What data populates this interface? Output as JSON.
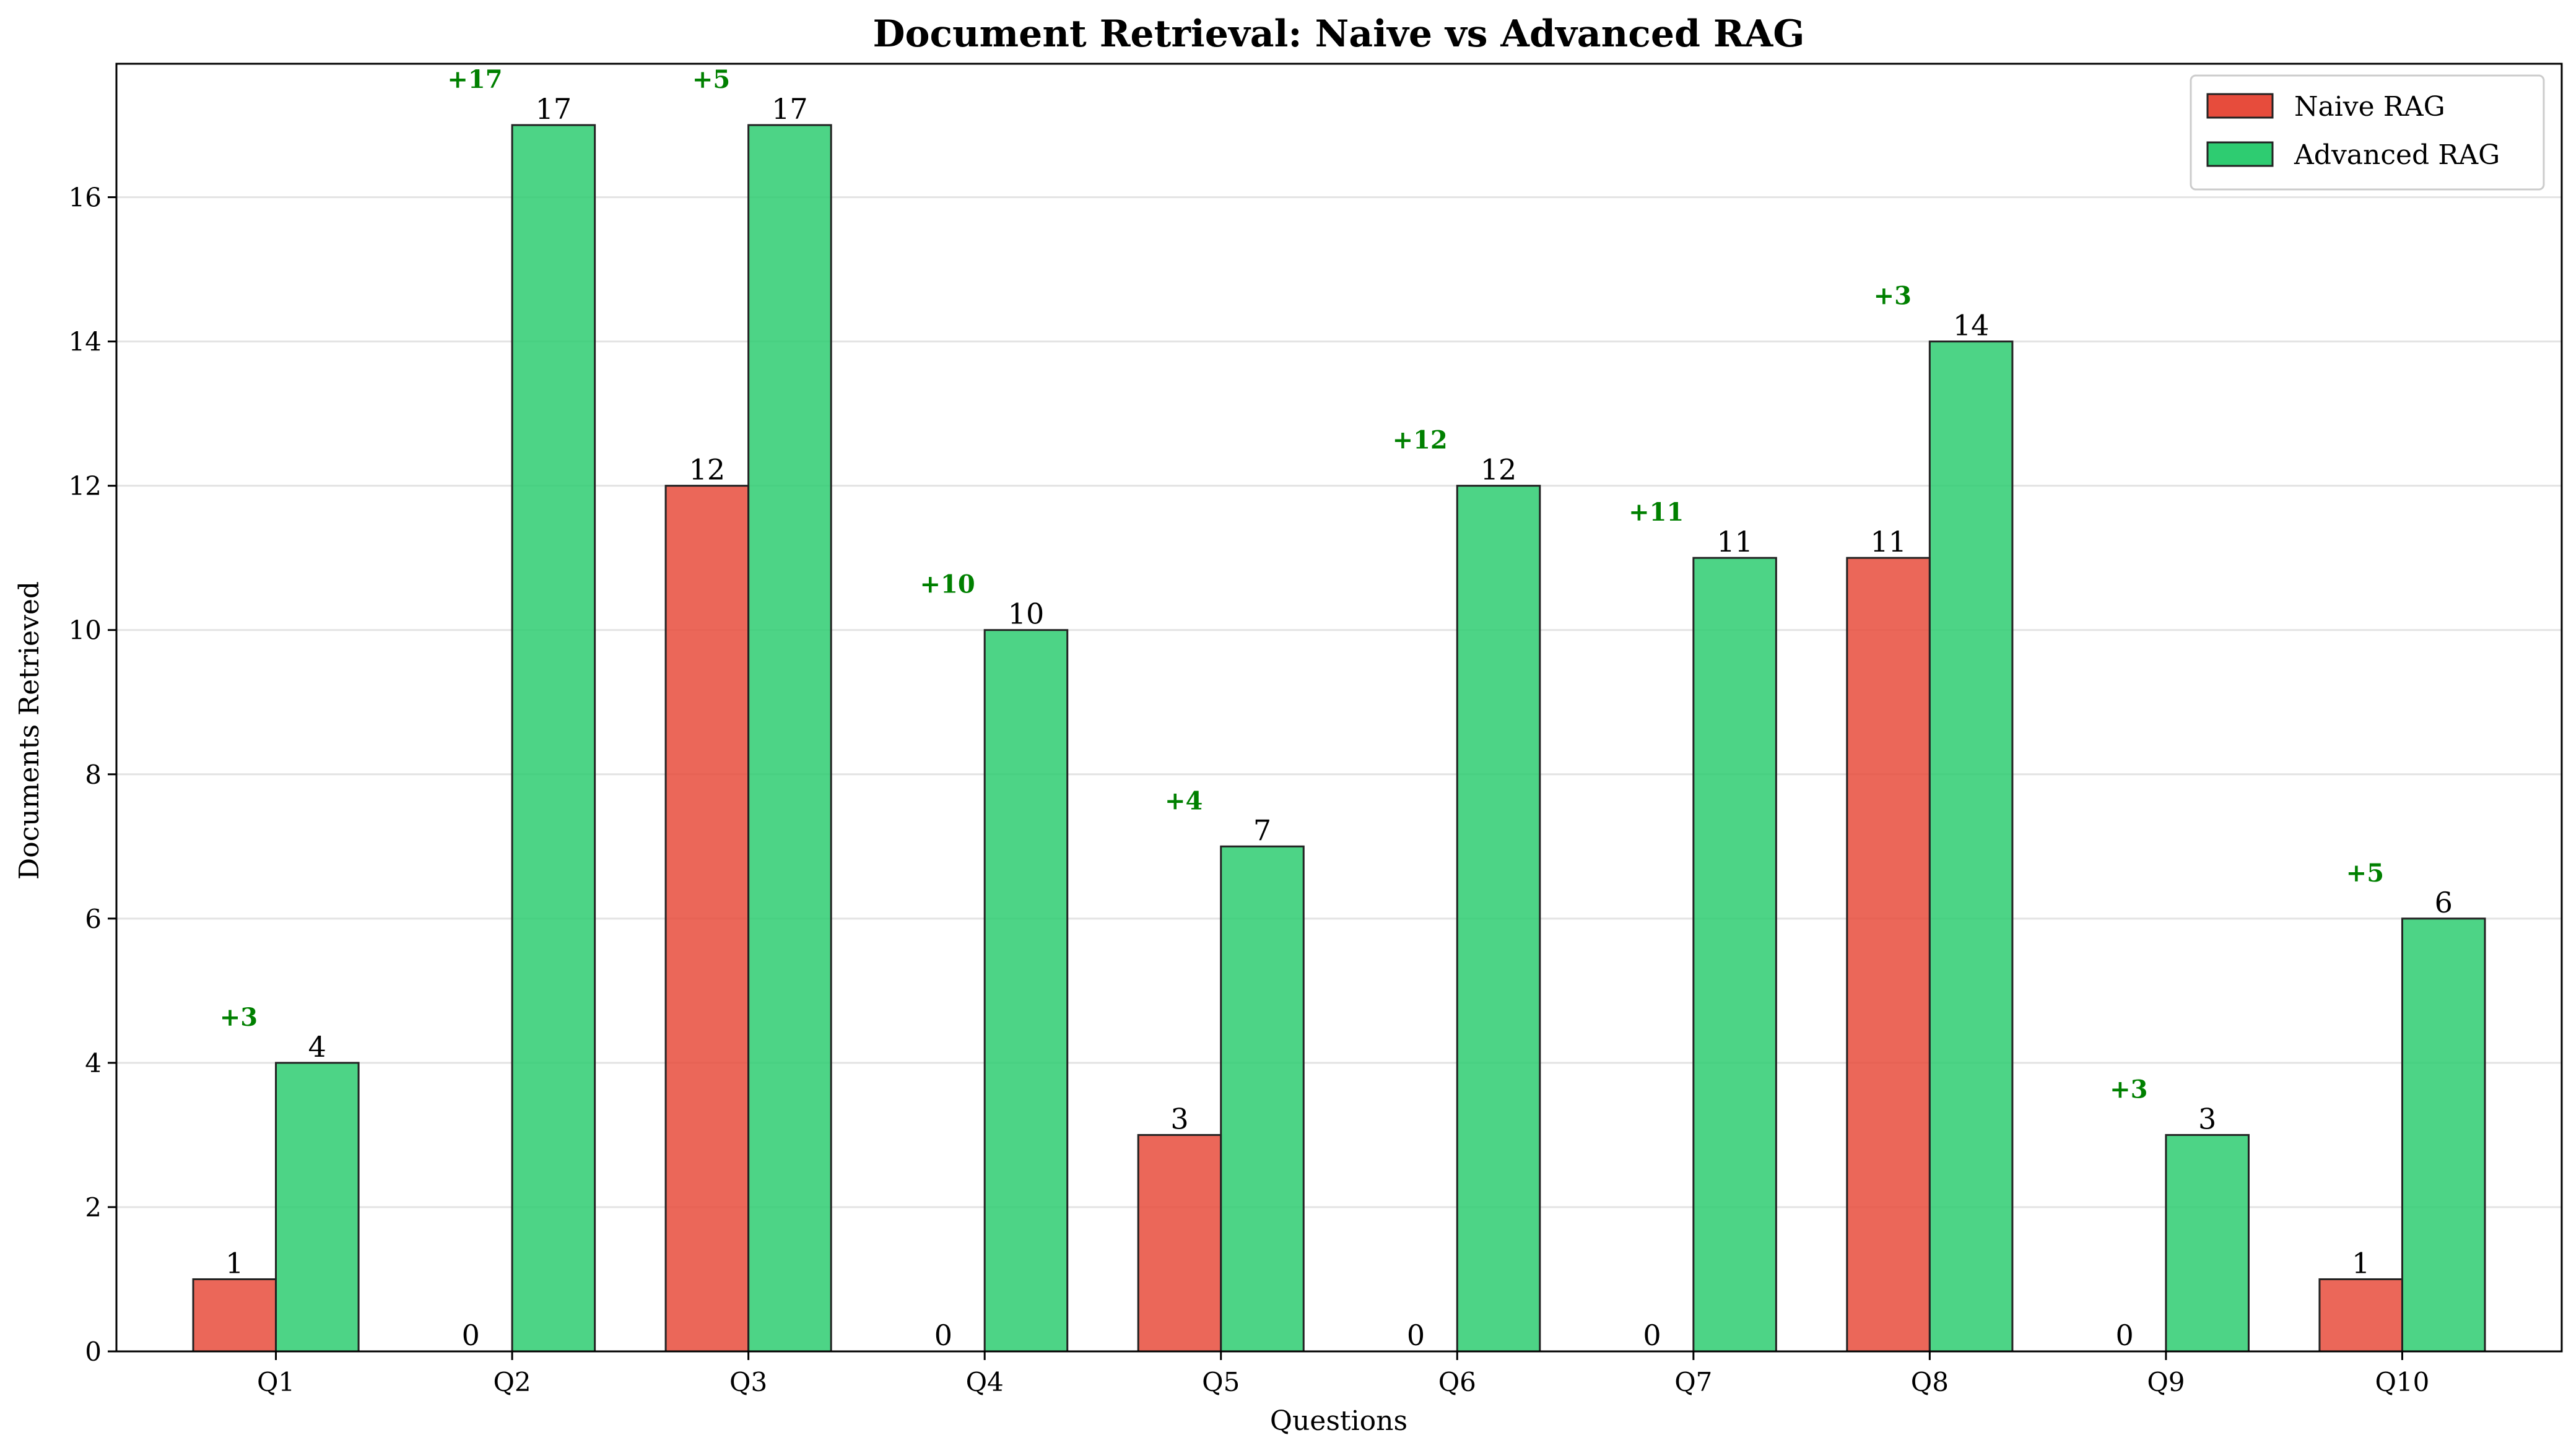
{
  "chart_data": {
    "type": "bar",
    "title": "Document Retrieval: Naive vs Advanced RAG",
    "xlabel": "Questions",
    "ylabel": "Documents Retrieved",
    "ylim": [
      0,
      17.85
    ],
    "yticks": [
      0,
      2,
      4,
      6,
      8,
      10,
      12,
      14,
      16
    ],
    "grid": "horizontal",
    "legend_position": "top-right",
    "categories": [
      "Q1",
      "Q2",
      "Q3",
      "Q4",
      "Q5",
      "Q6",
      "Q7",
      "Q8",
      "Q9",
      "Q10"
    ],
    "series": [
      {
        "name": "Naive RAG",
        "color": "#e74c3c",
        "values": [
          1,
          0,
          12,
          0,
          3,
          0,
          0,
          11,
          0,
          1
        ]
      },
      {
        "name": "Advanced RAG",
        "color": "#2ecc71",
        "values": [
          4,
          17,
          17,
          10,
          7,
          12,
          11,
          14,
          3,
          6
        ]
      }
    ],
    "improvement_labels": [
      "+3",
      "+17",
      "+5",
      "+10",
      "+4",
      "+12",
      "+11",
      "+3",
      "+3",
      "+5"
    ],
    "improvement_color": "#008000"
  }
}
